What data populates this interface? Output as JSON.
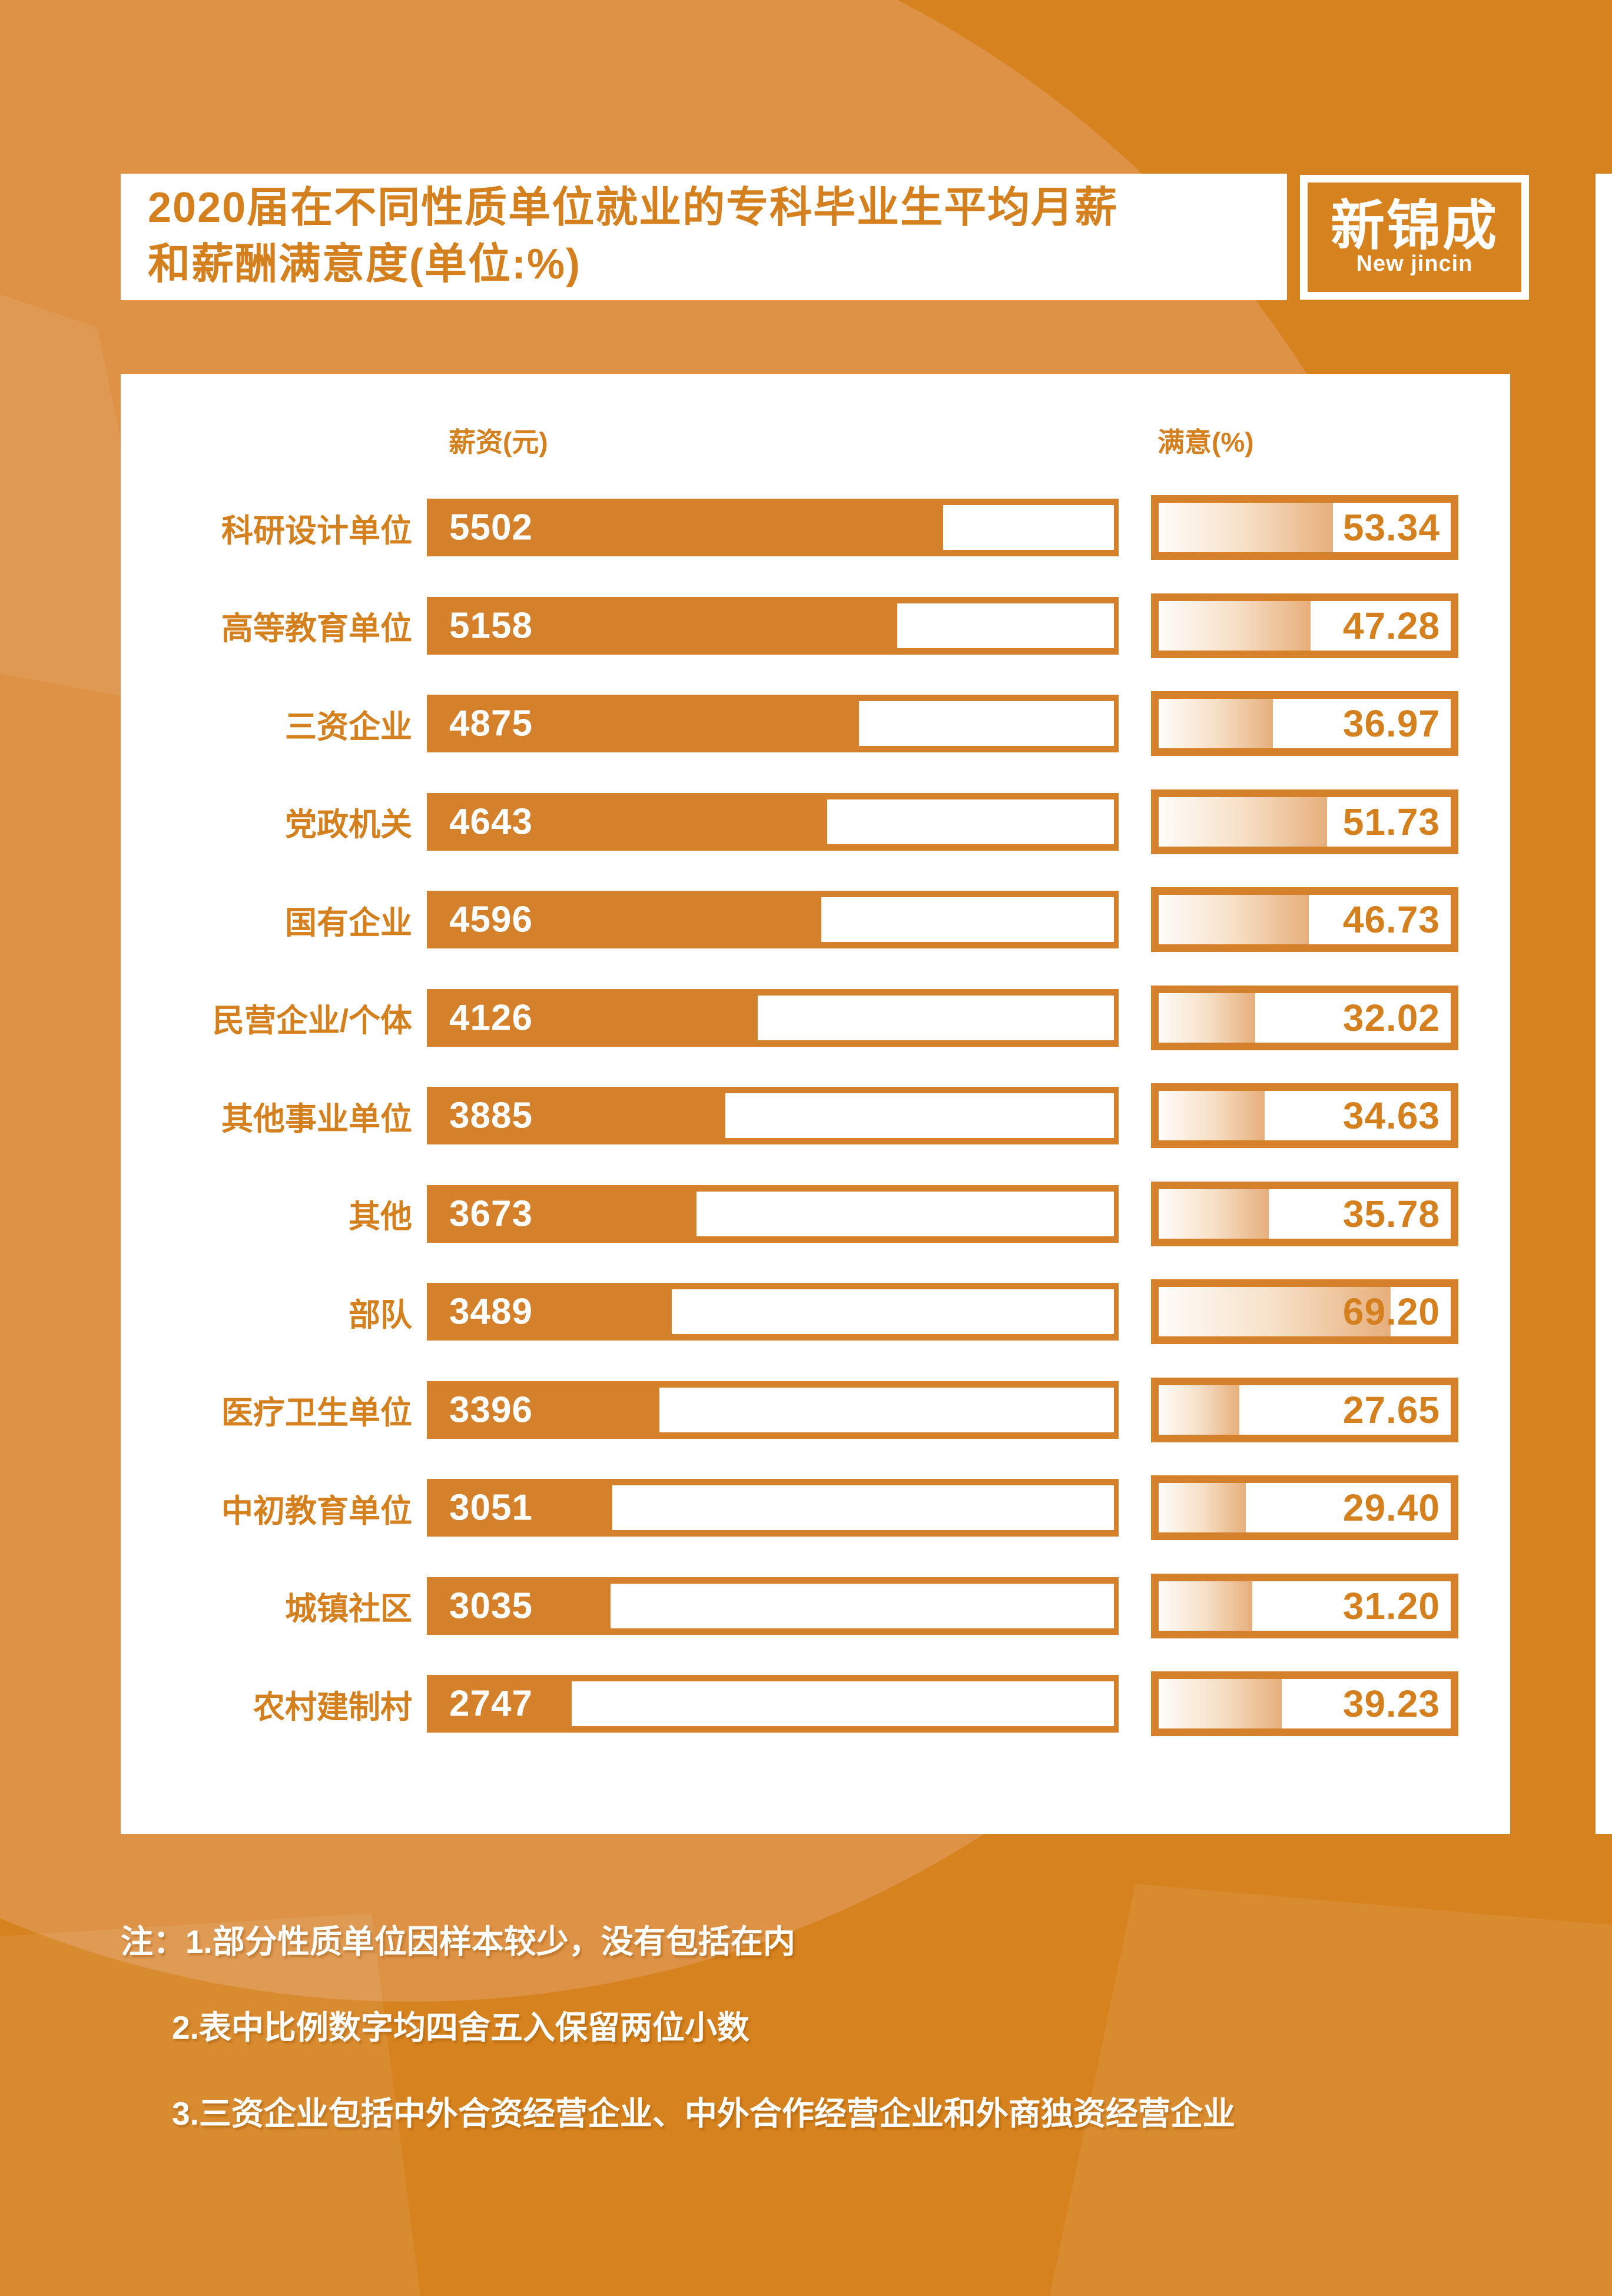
{
  "header": {
    "title_line1": "2020届在不同性质单位就业的专科毕业生平均月薪",
    "title_line2": "和薪酬满意度(单位:%)",
    "logo": {
      "name_cn": "新锦成",
      "name_en": "New jincin"
    }
  },
  "columns": {
    "salary_header": "薪资(元)",
    "satisfaction_header": "满意(%)"
  },
  "chart": {
    "rows": [
      {
        "label": "科研设计单位",
        "salary": "5502",
        "satisfaction": "53.34"
      },
      {
        "label": "高等教育单位",
        "salary": "5158",
        "satisfaction": "47.28"
      },
      {
        "label": "三资企业",
        "salary": "4875",
        "satisfaction": "36.97"
      },
      {
        "label": "党政机关",
        "salary": "4643",
        "satisfaction": "51.73"
      },
      {
        "label": "国有企业",
        "salary": "4596",
        "satisfaction": "46.73"
      },
      {
        "label": "民营企业/个体",
        "salary": "4126",
        "satisfaction": "32.02"
      },
      {
        "label": "其他事业单位",
        "salary": "3885",
        "satisfaction": "34.63"
      },
      {
        "label": "其他",
        "salary": "3673",
        "satisfaction": "35.78"
      },
      {
        "label": "部队",
        "salary": "3489",
        "satisfaction": "69.20"
      },
      {
        "label": "医疗卫生单位",
        "salary": "3396",
        "satisfaction": "27.65"
      },
      {
        "label": "中初教育单位",
        "salary": "3051",
        "satisfaction": "29.40"
      },
      {
        "label": "城镇社区",
        "salary": "3035",
        "satisfaction": "31.20"
      },
      {
        "label": "农村建制村",
        "salary": "2747",
        "satisfaction": "39.23"
      }
    ]
  },
  "notes": {
    "prefix": "注：",
    "items": [
      "1.部分性质单位因样本较少，没有包括在内",
      "2.表中比例数字均四舍五入保留两位小数",
      "3.三资企业包括中外合资经营企业、中外合作经营企业和外商独资经营企业"
    ]
  },
  "colors": {
    "page_background": "#D6821E",
    "light_shape": "#DD9245",
    "bar_orange": "#D5812C",
    "accent_text": "#D5801F",
    "gradient_end": "#E6AF7C",
    "white": "#FFFFFF"
  },
  "chart_data": {
    "type": "bar",
    "title": "2020届在不同性质单位就业的专科毕业生平均月薪和薪酬满意度(单位:%)",
    "categories": [
      "科研设计单位",
      "高等教育单位",
      "三资企业",
      "党政机关",
      "国有企业",
      "民营企业/个体",
      "其他事业单位",
      "其他",
      "部队",
      "医疗卫生单位",
      "中初教育单位",
      "城镇社区",
      "农村建制村"
    ],
    "series": [
      {
        "name": "薪资(元)",
        "values": [
          5502,
          5158,
          4875,
          4643,
          4596,
          4126,
          3885,
          3673,
          3489,
          3396,
          3051,
          3035,
          2747
        ]
      },
      {
        "name": "满意(%)",
        "values": [
          53.34,
          47.28,
          36.97,
          51.73,
          46.73,
          32.02,
          34.63,
          35.78,
          69.2,
          27.65,
          29.4,
          31.2,
          39.23
        ]
      }
    ],
    "orientation": "horizontal",
    "grid": false,
    "legend_position": "column-headers",
    "notes": [
      "1.部分性质单位因样本较少，没有包括在内",
      "2.表中比例数字均四舍五入保留两位小数",
      "3.三资企业包括中外合资经营企业、中外合作经营企业和外商独资经营企业"
    ]
  }
}
